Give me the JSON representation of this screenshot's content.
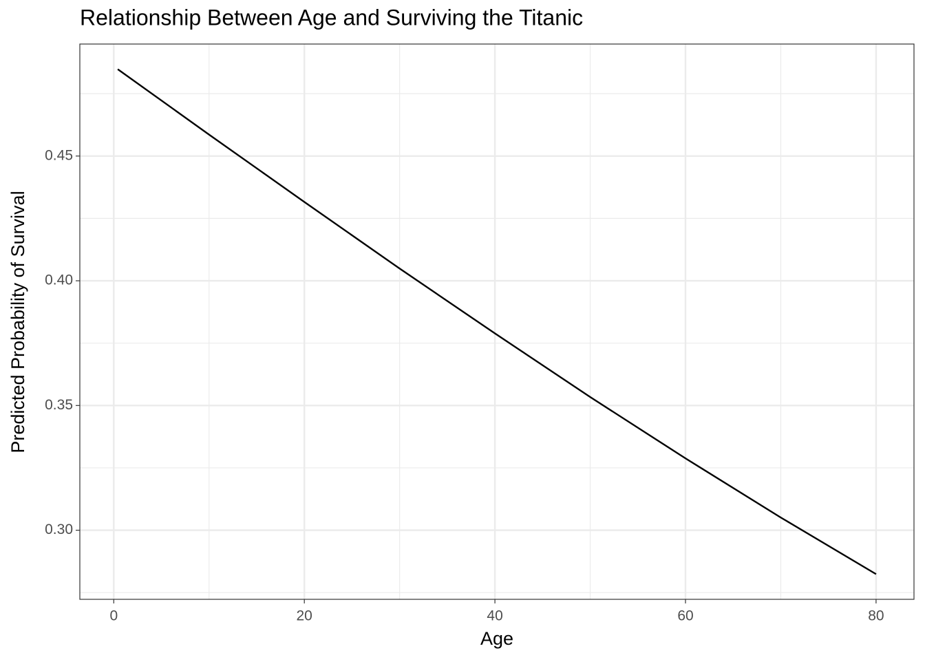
{
  "chart_data": {
    "type": "line",
    "title": "Relationship Between Age and Surviving the Titanic",
    "x_label": "Age",
    "y_label": "Predicted Probability of Survival",
    "x": [
      0.42,
      10,
      20,
      30,
      40,
      50,
      60,
      70,
      80
    ],
    "series": [
      {
        "color": "#000000",
        "values": [
          0.4848,
          0.4586,
          0.4316,
          0.4049,
          0.3789,
          0.3534,
          0.3288,
          0.3051,
          0.2824
        ]
      }
    ],
    "xlim": [
      -3.56,
      83.98
    ],
    "ylim": [
      0.2723,
      0.4949
    ],
    "xticks": [
      0,
      20,
      40,
      60,
      80
    ],
    "yticks": [
      {
        "value": 0.3,
        "label": "0.30"
      },
      0.35,
      {
        "value": 0.4,
        "label": "0.40"
      },
      0.45
    ],
    "x_minor_grid": [
      10,
      30,
      50,
      70
    ],
    "y_minor_grid": [
      0.275,
      0.325,
      0.375,
      0.425,
      0.475
    ],
    "grid": true
  }
}
